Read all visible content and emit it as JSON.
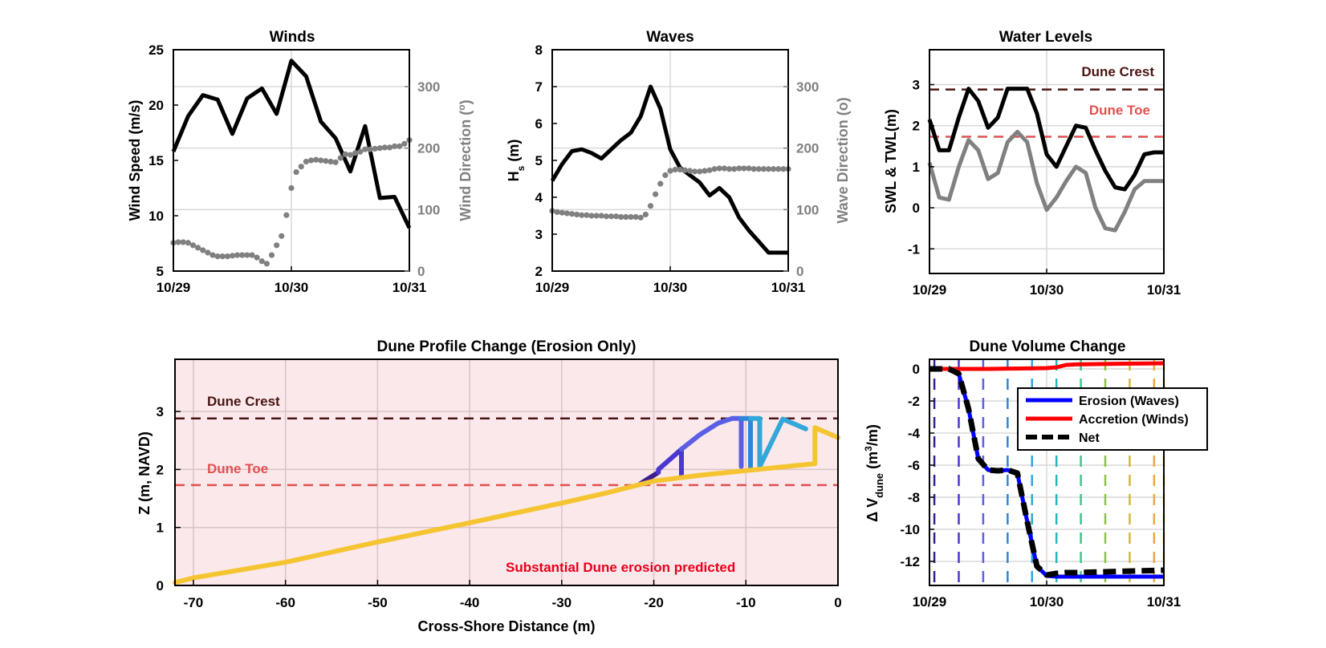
{
  "colors": {
    "black": "#000000",
    "gray": "#808080",
    "crest": "#4a1414",
    "toe": "#e05050",
    "shade": "#fbe8ea",
    "erosion_text": "#e8001c",
    "blue": "#0000ff",
    "red": "#ff0000",
    "yellow": "#f5c431"
  },
  "chart_data": [
    {
      "id": "winds",
      "type": "line",
      "title": "Winds",
      "xlabel": "",
      "ylabel": "Wind Speed (m/s)",
      "y2label_main": "Wind Direction (",
      "y2label_sup": "o",
      "y2label_end": ")",
      "x_ticks": [
        "10/29",
        "10/30",
        "10/31"
      ],
      "xlim": [
        0,
        48
      ],
      "ylim": [
        5,
        25
      ],
      "yticks": [
        5,
        10,
        15,
        20,
        25
      ],
      "y2lim": [
        0,
        360
      ],
      "y2ticks": [
        0,
        100,
        200,
        300
      ],
      "grid": true,
      "series": [
        {
          "axis": "left",
          "style": "line",
          "color": "#000000",
          "x": [
            0,
            3,
            6,
            9,
            12,
            15,
            18,
            21,
            24,
            27,
            30,
            33,
            36,
            39,
            42,
            45,
            48
          ],
          "y": [
            15.8,
            19,
            20.9,
            20.5,
            17.4,
            20.6,
            21.5,
            19.2,
            24,
            22.6,
            18.5,
            17,
            14,
            18.1,
            11.6,
            11.7,
            8.9
          ]
        },
        {
          "axis": "right",
          "style": "dots",
          "color": "#808080",
          "x": [
            0,
            1,
            2,
            3,
            4,
            5,
            6,
            7,
            8,
            9,
            10,
            11,
            12,
            13,
            14,
            15,
            16,
            17,
            18,
            19,
            20,
            21,
            22,
            23,
            24,
            25,
            26,
            27,
            28,
            29,
            30,
            31,
            32,
            33,
            34,
            35,
            36,
            37,
            38,
            39,
            40,
            41,
            42,
            43,
            44,
            45,
            46,
            47,
            48
          ],
          "y": [
            46,
            47,
            47,
            46,
            42,
            38,
            34,
            30,
            26,
            24,
            24,
            24,
            25,
            26,
            26,
            26,
            26,
            22,
            16,
            12,
            26,
            42,
            57,
            91,
            135,
            161,
            170,
            178,
            180,
            181,
            180,
            179,
            178,
            177,
            184,
            190,
            189,
            192,
            194,
            198,
            198,
            199,
            200,
            201,
            201,
            203,
            203,
            207,
            213
          ]
        }
      ]
    },
    {
      "id": "waves",
      "type": "line",
      "title": "Waves",
      "xlabel": "",
      "ylabel_main": "H",
      "ylabel_sub": "s",
      "ylabel_end": " (m)",
      "y2label": "Wave Direction (o)",
      "x_ticks": [
        "10/29",
        "10/30",
        "10/31"
      ],
      "xlim": [
        0,
        48
      ],
      "ylim": [
        2,
        8
      ],
      "yticks": [
        2,
        3,
        4,
        5,
        6,
        7,
        8
      ],
      "y2lim": [
        0,
        360
      ],
      "y2ticks": [
        0,
        100,
        200,
        300
      ],
      "grid": true,
      "series": [
        {
          "axis": "left",
          "style": "line",
          "color": "#000000",
          "x": [
            0,
            2,
            4,
            6,
            8,
            10,
            12,
            14,
            16,
            18,
            20,
            22,
            24,
            26,
            28,
            30,
            32,
            34,
            36,
            38,
            40,
            42,
            44,
            46,
            48
          ],
          "y": [
            4.45,
            4.9,
            5.25,
            5.3,
            5.2,
            5.05,
            5.3,
            5.55,
            5.75,
            6.2,
            7.0,
            6.4,
            5.3,
            4.8,
            4.6,
            4.4,
            4.05,
            4.25,
            4.0,
            3.45,
            3.1,
            2.8,
            2.5,
            2.5,
            2.5
          ]
        },
        {
          "axis": "right",
          "style": "dots",
          "color": "#808080",
          "x": [
            0,
            1,
            2,
            3,
            4,
            5,
            6,
            7,
            8,
            9,
            10,
            11,
            12,
            13,
            14,
            15,
            16,
            17,
            18,
            19,
            20,
            21,
            22,
            23,
            24,
            25,
            26,
            27,
            28,
            29,
            30,
            31,
            32,
            33,
            34,
            35,
            36,
            37,
            38,
            39,
            40,
            41,
            42,
            43,
            44,
            45,
            46,
            47,
            48
          ],
          "y": [
            98,
            96,
            95,
            94,
            93,
            92,
            91,
            91,
            90,
            90,
            90,
            89,
            89,
            89,
            88,
            88,
            88,
            88,
            87,
            92,
            106,
            125,
            142,
            156,
            163,
            165,
            165,
            164,
            163,
            162,
            162,
            163,
            164,
            166,
            167,
            167,
            166,
            166,
            167,
            167,
            167,
            166,
            166,
            166,
            166,
            166,
            166,
            166,
            166
          ]
        }
      ]
    },
    {
      "id": "waterlevels",
      "type": "line",
      "title": "Water Levels",
      "xlabel": "",
      "ylabel": "SWL & TWL(m)",
      "x_ticks": [
        "10/29",
        "10/30",
        "10/31"
      ],
      "xlim": [
        0,
        48
      ],
      "ylim": [
        -1.6,
        3.85
      ],
      "yticks": [
        -1,
        0,
        1,
        2,
        3
      ],
      "grid": true,
      "hlines": [
        {
          "label": "Dune Crest",
          "y": 2.88,
          "color": "#4a1414"
        },
        {
          "label": "Dune Toe",
          "y": 1.73,
          "color": "#e05050"
        }
      ],
      "series": [
        {
          "style": "line",
          "color": "#000000",
          "x": [
            0,
            2,
            4,
            6,
            8,
            10,
            12,
            14,
            16,
            18,
            20,
            22,
            24,
            26,
            28,
            30,
            32,
            34,
            36,
            38,
            40,
            42,
            44,
            46,
            48
          ],
          "y": [
            2.15,
            1.4,
            1.4,
            2.2,
            2.9,
            2.6,
            1.95,
            2.2,
            2.9,
            2.9,
            2.9,
            2.3,
            1.3,
            1.0,
            1.5,
            2.0,
            1.95,
            1.4,
            0.9,
            0.5,
            0.45,
            0.8,
            1.3,
            1.35,
            1.35
          ]
        },
        {
          "style": "line",
          "color": "#808080",
          "x": [
            0,
            2,
            4,
            6,
            8,
            10,
            12,
            14,
            16,
            18,
            20,
            22,
            24,
            26,
            28,
            30,
            32,
            34,
            36,
            38,
            40,
            42,
            44,
            46,
            48
          ],
          "y": [
            1.1,
            0.25,
            0.2,
            1.0,
            1.65,
            1.4,
            0.7,
            0.85,
            1.6,
            1.85,
            1.6,
            0.6,
            -0.05,
            0.25,
            0.65,
            1.0,
            0.85,
            0.0,
            -0.5,
            -0.55,
            -0.1,
            0.45,
            0.65,
            0.65,
            0.65
          ]
        }
      ]
    },
    {
      "id": "profile",
      "type": "line",
      "title": "Dune Profile Change (Erosion Only)",
      "xlabel": "Cross-Shore Distance (m)",
      "ylabel": "Z (m, NAVD)",
      "xlim": [
        -72,
        0
      ],
      "xticks": [
        -70,
        -60,
        -50,
        -40,
        -30,
        -20,
        -10,
        0
      ],
      "ylim": [
        0,
        3.9
      ],
      "yticks": [
        0,
        1,
        2,
        3
      ],
      "grid": true,
      "annotation": "Substantial Dune erosion predicted",
      "hlines": [
        {
          "label": "Dune Crest",
          "y": 2.88,
          "color": "#4a1414"
        },
        {
          "label": "Dune Toe",
          "y": 1.73,
          "color": "#e05050"
        }
      ],
      "series": [
        {
          "color": "#3b1f8f",
          "x": [
            -21.5,
            -20.5,
            -19.5
          ],
          "y": [
            1.75,
            1.85,
            1.95
          ]
        },
        {
          "color": "#4a36d0",
          "x": [
            -19.5,
            -19.5,
            -17.0,
            -17.0
          ],
          "y": [
            1.95,
            2.0,
            2.35,
            1.9
          ]
        },
        {
          "color": "#5a5fe6",
          "x": [
            -17.0,
            -15,
            -13,
            -11.5,
            -10.5,
            -10.5
          ],
          "y": [
            2.35,
            2.6,
            2.8,
            2.88,
            2.88,
            2.05
          ]
        },
        {
          "color": "#2e86d8",
          "x": [
            -10.5,
            -9.5,
            -9.5
          ],
          "y": [
            2.88,
            2.88,
            2.05
          ]
        },
        {
          "color": "#33a7d8",
          "x": [
            -9.5,
            -8.5,
            -8.5,
            -6,
            -3.5
          ],
          "y": [
            2.88,
            2.88,
            2.05,
            2.87,
            2.7
          ]
        },
        {
          "color": "#f5c431",
          "x": [
            -72,
            -70,
            -60,
            -50,
            -40,
            -30,
            -25,
            -20,
            -15,
            -10,
            -5,
            -2.5,
            -2.5,
            0
          ],
          "y": [
            0.05,
            0.13,
            0.4,
            0.75,
            1.08,
            1.42,
            1.6,
            1.8,
            1.9,
            1.98,
            2.06,
            2.1,
            2.72,
            2.55
          ]
        }
      ]
    },
    {
      "id": "volume",
      "type": "line",
      "title": "Dune Volume Change",
      "xlabel": "",
      "ylabel_main": "Δ V",
      "ylabel_sub": "dune",
      "ylabel_mid": " (m",
      "ylabel_sup": "3",
      "ylabel_end": "/m)",
      "x_ticks": [
        "10/29",
        "10/30",
        "10/31"
      ],
      "xlim": [
        0,
        48
      ],
      "ylim": [
        -13.5,
        0.6
      ],
      "yticks": [
        -12,
        -10,
        -8,
        -6,
        -4,
        -2,
        0
      ],
      "grid": true,
      "vlines": {
        "x": [
          1,
          6,
          11,
          16,
          21,
          26,
          31,
          36,
          41,
          46,
          48
        ],
        "colors": [
          "#3b1f8f",
          "#4a36d0",
          "#5a5fe6",
          "#2e86d8",
          "#33a7d8",
          "#23b7c2",
          "#47c28a",
          "#8fc33f",
          "#d1b83a",
          "#f0a93a",
          "#f5d320"
        ]
      },
      "legend": {
        "position": "top-right",
        "entries": [
          "Erosion (Waves)",
          "Accretion (Winds)",
          "Net"
        ]
      },
      "series": [
        {
          "name": "Erosion (Waves)",
          "color": "#0000ff",
          "style": "solid",
          "x": [
            0,
            4,
            6,
            8,
            10,
            12,
            14,
            16,
            18,
            20,
            22,
            24,
            26,
            28,
            30,
            36,
            42,
            48
          ],
          "y": [
            0,
            0,
            -0.3,
            -2.5,
            -5.6,
            -6.3,
            -6.35,
            -6.3,
            -6.5,
            -9.5,
            -12.3,
            -12.9,
            -12.95,
            -12.95,
            -12.95,
            -12.95,
            -12.95,
            -12.95
          ]
        },
        {
          "name": "Accretion (Winds)",
          "color": "#ff0000",
          "style": "solid",
          "x": [
            0,
            4,
            8,
            12,
            16,
            20,
            24,
            26,
            28,
            30,
            34,
            38,
            42,
            48
          ],
          "y": [
            0,
            0,
            0,
            0,
            0.02,
            0.03,
            0.05,
            0.1,
            0.25,
            0.28,
            0.3,
            0.32,
            0.33,
            0.35
          ]
        },
        {
          "name": "Net",
          "color": "#000000",
          "style": "dashed",
          "x": [
            0,
            4,
            6,
            8,
            10,
            12,
            14,
            16,
            18,
            20,
            22,
            24,
            26,
            28,
            30,
            36,
            42,
            48
          ],
          "y": [
            0,
            0,
            -0.3,
            -2.5,
            -5.6,
            -6.3,
            -6.35,
            -6.3,
            -6.5,
            -9.5,
            -12.3,
            -12.85,
            -12.75,
            -12.7,
            -12.7,
            -12.65,
            -12.6,
            -12.55
          ]
        }
      ]
    }
  ]
}
